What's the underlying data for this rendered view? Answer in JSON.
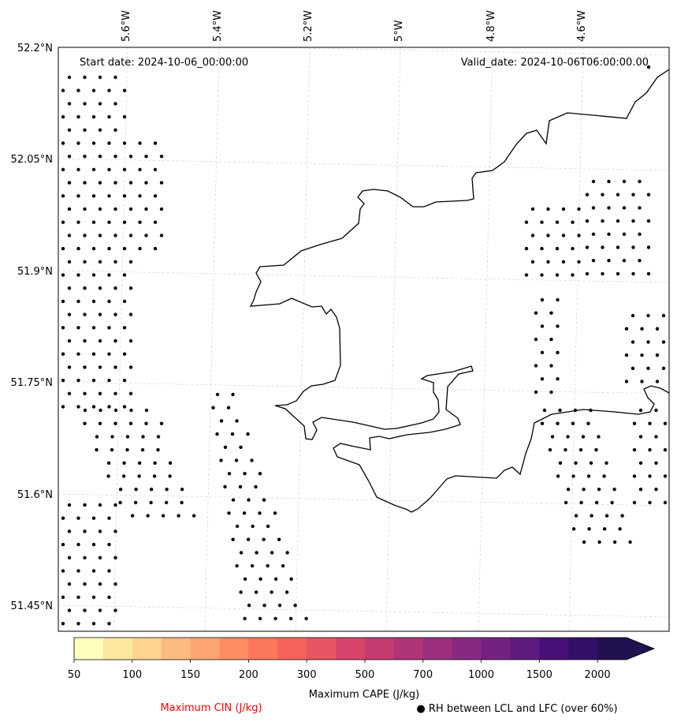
{
  "map": {
    "start_date_label": "Start date: 2024-10-06_00:00:00",
    "valid_date_label": "Valid_date: 2024-10-06T06:00:00.00",
    "lon_ticks": [
      "5.6°W",
      "5.4°W",
      "5.2°W",
      "5°W",
      "4.8°W",
      "4.6°W"
    ],
    "lat_ticks": [
      "52.2°N",
      "52.05°N",
      "51.9°N",
      "51.75°N",
      "51.6°N",
      "51.45°N"
    ],
    "extent": {
      "lon_min": -5.75,
      "lon_max": -4.4,
      "lat_min": 51.42,
      "lat_max": 52.2
    }
  },
  "colorbar": {
    "label": "Maximum CAPE (J/kg)",
    "tick_labels": [
      "50",
      "100",
      "150",
      "200",
      "300",
      "500",
      "700",
      "1000",
      "1500",
      "2000"
    ],
    "levels": [
      50,
      75,
      100,
      125,
      150,
      175,
      200,
      250,
      300,
      400,
      500,
      600,
      700,
      850,
      1000,
      1250,
      1500,
      1750,
      2000
    ],
    "colors": [
      "#fefebd",
      "#fee8a0",
      "#fed48f",
      "#febb7f",
      "#fea572",
      "#fd8d63",
      "#fb775b",
      "#f6625b",
      "#e95462",
      "#d8446b",
      "#c43c72",
      "#b03577",
      "#9c2f7f",
      "#882981",
      "#732281",
      "#5f1c7e",
      "#4a1079",
      "#331068",
      "#21114e"
    ],
    "extend_color": "#21114e"
  },
  "legend": {
    "cin_label": "Maximum CIN (J/kg)",
    "cin_color": "#ff0000",
    "rh_label": "● RH between LCL and LFC (over 60%)"
  }
}
